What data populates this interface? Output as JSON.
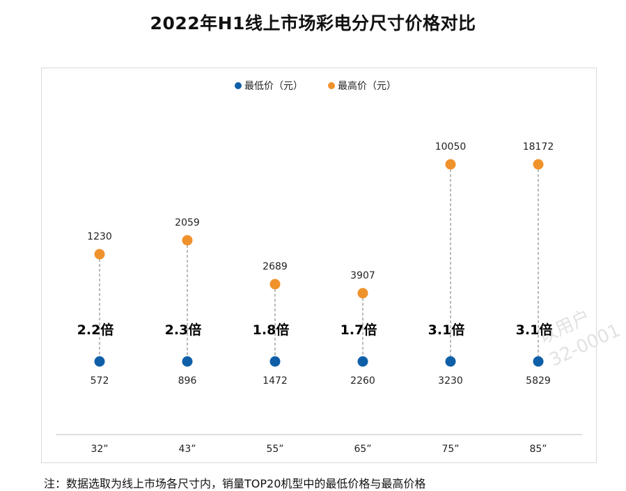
{
  "chart_data": {
    "type": "dumbbell",
    "title": "2022年H1线上市场彩电分尺寸价格对比",
    "categories": [
      "32”",
      "43”",
      "55”",
      "65”",
      "75”",
      "85”"
    ],
    "series": [
      {
        "name": "最低价（元）",
        "color": "#0f5fa8",
        "values": [
          572,
          896,
          1472,
          2260,
          3230,
          5829
        ]
      },
      {
        "name": "最高价（元）",
        "color": "#f0922b",
        "values": [
          1230,
          2059,
          2689,
          3907,
          10050,
          18172
        ]
      }
    ],
    "ratios": [
      "2.2倍",
      "2.3倍",
      "1.8倍",
      "1.7倍",
      "3.1倍",
      "3.1倍"
    ],
    "legend_position": "top-center",
    "grid": false,
    "footnote": "注：数据选取为线上市场各尺寸内，销量TOP20机型中的最低价格与最高价格"
  },
  "watermark": {
    "line1": "以用户",
    "line2": "32-0001"
  }
}
